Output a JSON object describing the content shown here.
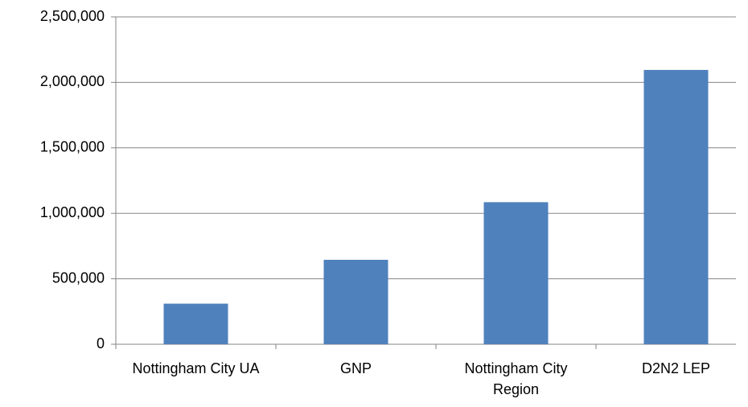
{
  "chart_data": {
    "type": "bar",
    "categories": [
      "Nottingham City UA",
      "GNP",
      "Nottingham City Region",
      "D2N2 LEP"
    ],
    "values": [
      310000,
      645000,
      1085000,
      2095000
    ],
    "color": "#4f81bd",
    "ylim": [
      0,
      2500000
    ],
    "yticks": [
      0,
      {
        "value": 500000,
        "label": "500,000"
      },
      {
        "value": 1000000,
        "label": "1,000,000"
      },
      {
        "value": 1500000,
        "label": "1,500,000"
      },
      {
        "value": 2000000,
        "label": "2,000,000"
      },
      {
        "value": 2500000,
        "label": "2,500,000"
      }
    ],
    "grid": true
  }
}
